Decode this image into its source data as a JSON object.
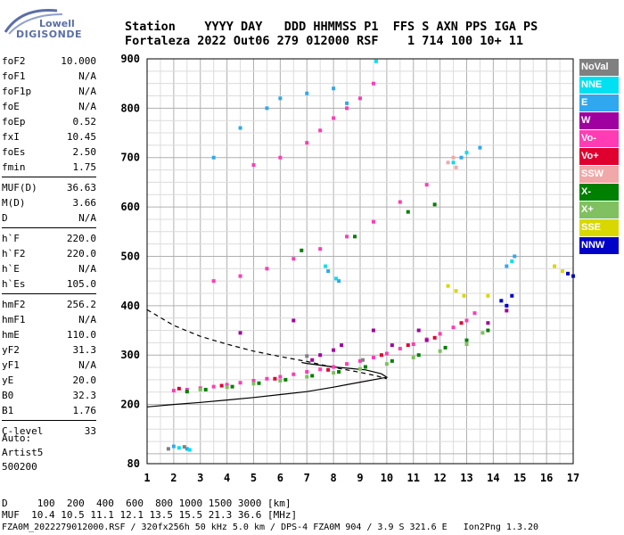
{
  "logo": {
    "line1": "Lowell",
    "line2": "DIGISONDE"
  },
  "header": {
    "row1": "Station    YYYY DAY   DDD HHMMSS P1  FFS S AXN PPS IGA PS",
    "row2": "Fortaleza 2022 Out06 279 012000 RSF    1 714 100 10+ 11"
  },
  "params": [
    {
      "label": "foF2",
      "value": "10.000"
    },
    {
      "label": "foF1",
      "value": "N/A"
    },
    {
      "label": "foF1p",
      "value": "N/A"
    },
    {
      "label": "foE",
      "value": "N/A"
    },
    {
      "label": "foEp",
      "value": "0.52"
    },
    {
      "label": "fxI",
      "value": "10.45"
    },
    {
      "label": "foEs",
      "value": "2.50"
    },
    {
      "label": "fmin",
      "value": "1.75"
    },
    {
      "label": "MUF(D)",
      "value": "36.63",
      "sep": true
    },
    {
      "label": "M(D)",
      "value": "3.66"
    },
    {
      "label": "D",
      "value": "N/A"
    },
    {
      "label": "h`F",
      "value": "220.0",
      "sep": true
    },
    {
      "label": "h`F2",
      "value": "220.0"
    },
    {
      "label": "h`E",
      "value": "N/A"
    },
    {
      "label": "h`Es",
      "value": "105.0"
    },
    {
      "label": "hmF2",
      "value": "256.2",
      "sep": true
    },
    {
      "label": "hmF1",
      "value": "N/A"
    },
    {
      "label": "hmE",
      "value": "110.0"
    },
    {
      "label": "yF2",
      "value": "31.3"
    },
    {
      "label": "yF1",
      "value": "N/A"
    },
    {
      "label": "yE",
      "value": "20.0"
    },
    {
      "label": "B0",
      "value": "32.3"
    },
    {
      "label": "B1",
      "value": "1.76"
    },
    {
      "label": "C-level",
      "value": "33",
      "sep": true
    }
  ],
  "auto": {
    "line1": "Auto:",
    "line2": "Artist5",
    "line3": "500200"
  },
  "footer": {
    "line1": "D     100  200  400  600  800 1000 1500 3000 [km]",
    "line2": "MUF  10.4 10.5 11.1 12.1 13.5 15.5 21.3 36.6 [MHz]",
    "line3": "FZA0M_2022279012000.RSF / 320fx256h 50 kHz 5.0 km / DPS-4 FZA0M 904 / 3.9 S 321.6 E   Ion2Png 1.3.20"
  },
  "legend": [
    {
      "label": "NoVal",
      "color": "#808080"
    },
    {
      "label": "NNE",
      "color": "#00e0f0"
    },
    {
      "label": "E",
      "color": "#30a8f0"
    },
    {
      "label": "W",
      "color": "#a000a0"
    },
    {
      "label": "Vo-",
      "color": "#ff3cb4"
    },
    {
      "label": "Vo+",
      "color": "#e00030"
    },
    {
      "label": "SSW",
      "color": "#f0a8a8"
    },
    {
      "label": "X-",
      "color": "#008000"
    },
    {
      "label": "X+",
      "color": "#80c060"
    },
    {
      "label": "SSE",
      "color": "#d8d800"
    },
    {
      "label": "NNW",
      "color": "#0000c8"
    }
  ],
  "chart_data": {
    "type": "scatter",
    "xlabel": "",
    "ylabel": "",
    "xlim": [
      1,
      17
    ],
    "ylim": [
      80,
      900
    ],
    "xticks": [
      1,
      2,
      3,
      4,
      5,
      6,
      7,
      8,
      9,
      10,
      11,
      12,
      13,
      14,
      15,
      16,
      17
    ],
    "yticks": [
      80,
      200,
      300,
      400,
      500,
      600,
      700,
      800,
      900
    ],
    "grid": true,
    "series": [
      {
        "name": "Vo-",
        "color": "#ff3cb4",
        "points": [
          [
            2,
            228
          ],
          [
            2.5,
            230
          ],
          [
            3,
            233
          ],
          [
            3.5,
            236
          ],
          [
            4,
            240
          ],
          [
            4.5,
            244
          ],
          [
            5,
            248
          ],
          [
            5.5,
            252
          ],
          [
            6,
            256
          ],
          [
            6.5,
            261
          ],
          [
            7,
            266
          ],
          [
            7.5,
            271
          ],
          [
            8,
            276
          ],
          [
            8.5,
            282
          ],
          [
            9,
            288
          ],
          [
            9.5,
            295
          ],
          [
            10,
            303
          ],
          [
            10.5,
            313
          ],
          [
            11,
            322
          ],
          [
            11.5,
            332
          ],
          [
            12,
            343
          ],
          [
            12.5,
            356
          ],
          [
            13,
            370
          ],
          [
            13.3,
            385
          ],
          [
            3.5,
            450
          ],
          [
            4.5,
            460
          ],
          [
            5.5,
            475
          ],
          [
            6.5,
            495
          ],
          [
            7.5,
            515
          ],
          [
            8.5,
            540
          ],
          [
            9.5,
            570
          ],
          [
            10.5,
            610
          ],
          [
            11.5,
            645
          ],
          [
            5,
            685
          ],
          [
            6,
            700
          ],
          [
            7,
            730
          ],
          [
            7.5,
            755
          ],
          [
            8,
            780
          ],
          [
            8.5,
            800
          ],
          [
            9,
            820
          ],
          [
            9.5,
            850
          ]
        ]
      },
      {
        "name": "X-",
        "color": "#008000",
        "points": [
          [
            2.5,
            226
          ],
          [
            3.2,
            230
          ],
          [
            4.2,
            236
          ],
          [
            5.2,
            243
          ],
          [
            6.2,
            250
          ],
          [
            7.2,
            258
          ],
          [
            8.2,
            266
          ],
          [
            9.2,
            276
          ],
          [
            10.2,
            288
          ],
          [
            11.2,
            300
          ],
          [
            12.2,
            315
          ],
          [
            13.0,
            330
          ],
          [
            13.8,
            350
          ],
          [
            6.8,
            512
          ],
          [
            8.8,
            540
          ],
          [
            10.8,
            590
          ],
          [
            11.8,
            605
          ]
        ]
      },
      {
        "name": "X+",
        "color": "#80c060",
        "points": [
          [
            3,
            230
          ],
          [
            4,
            235
          ],
          [
            5,
            242
          ],
          [
            6,
            248
          ],
          [
            7,
            256
          ],
          [
            8,
            264
          ],
          [
            9,
            272
          ],
          [
            10,
            282
          ],
          [
            11,
            295
          ],
          [
            12,
            308
          ],
          [
            13,
            322
          ],
          [
            13.6,
            345
          ]
        ]
      },
      {
        "name": "Vo+",
        "color": "#e00030",
        "points": [
          [
            2.2,
            232
          ],
          [
            3.8,
            238
          ],
          [
            5.8,
            252
          ],
          [
            7.8,
            270
          ],
          [
            9.8,
            300
          ],
          [
            10.8,
            320
          ],
          [
            11.8,
            335
          ],
          [
            12.8,
            365
          ]
        ]
      },
      {
        "name": "W",
        "color": "#a000a0",
        "points": [
          [
            4.5,
            345
          ],
          [
            6.5,
            370
          ],
          [
            7.2,
            290
          ],
          [
            7.5,
            300
          ],
          [
            8,
            310
          ],
          [
            8.3,
            320
          ],
          [
            9.5,
            350
          ],
          [
            10.2,
            320
          ],
          [
            11.2,
            350
          ],
          [
            11.5,
            330
          ],
          [
            13.8,
            365
          ],
          [
            14.5,
            390
          ]
        ]
      },
      {
        "name": "E",
        "color": "#30a8f0",
        "points": [
          [
            3.5,
            700
          ],
          [
            4.5,
            760
          ],
          [
            5.5,
            800
          ],
          [
            6,
            820
          ],
          [
            7,
            830
          ],
          [
            8,
            840
          ],
          [
            8.5,
            810
          ],
          [
            7.8,
            470
          ],
          [
            8.2,
            450
          ],
          [
            12.8,
            700
          ],
          [
            13.5,
            720
          ],
          [
            14.5,
            480
          ],
          [
            14.8,
            500
          ],
          [
            2,
            115
          ],
          [
            2.5,
            110
          ]
        ]
      },
      {
        "name": "NNE",
        "color": "#00e0f0",
        "points": [
          [
            7.7,
            480
          ],
          [
            8.1,
            455
          ],
          [
            9.6,
            895
          ],
          [
            12.5,
            690
          ],
          [
            13,
            710
          ],
          [
            14.7,
            490
          ],
          [
            2.2,
            112
          ],
          [
            2.6,
            108
          ]
        ]
      },
      {
        "name": "SSW",
        "color": "#f0a8a8",
        "points": [
          [
            12.3,
            690
          ],
          [
            12.5,
            700
          ],
          [
            12.6,
            680
          ]
        ]
      },
      {
        "name": "SSE",
        "color": "#d8d800",
        "points": [
          [
            12.3,
            440
          ],
          [
            12.6,
            430
          ],
          [
            12.9,
            420
          ],
          [
            13.8,
            420
          ],
          [
            16.3,
            480
          ],
          [
            16.6,
            470
          ]
        ]
      },
      {
        "name": "NNW",
        "color": "#0000c8",
        "points": [
          [
            14.3,
            410
          ],
          [
            14.5,
            400
          ],
          [
            14.7,
            420
          ],
          [
            16.8,
            465
          ],
          [
            17,
            460
          ]
        ]
      },
      {
        "name": "NoVal",
        "color": "#808080",
        "points": [
          [
            1.8,
            110
          ],
          [
            2.4,
            114
          ],
          [
            7,
            298
          ],
          [
            9.1,
            290
          ]
        ]
      }
    ],
    "curves": [
      {
        "style": "solid",
        "points": [
          [
            1,
            195
          ],
          [
            2,
            200
          ],
          [
            3,
            204
          ],
          [
            4,
            209
          ],
          [
            5,
            214
          ],
          [
            6,
            220
          ],
          [
            7,
            226
          ],
          [
            8,
            235
          ],
          [
            9,
            245
          ],
          [
            9.7,
            252
          ],
          [
            10,
            255
          ],
          [
            9.8,
            262
          ],
          [
            9.2,
            270
          ],
          [
            8,
            276
          ],
          [
            7,
            283
          ],
          [
            6.8,
            285
          ]
        ]
      },
      {
        "style": "dashed",
        "points": [
          [
            1,
            392
          ],
          [
            2,
            360
          ],
          [
            3,
            338
          ],
          [
            4,
            322
          ],
          [
            5,
            308
          ],
          [
            6,
            297
          ],
          [
            7,
            287
          ],
          [
            8,
            275
          ],
          [
            9,
            265
          ],
          [
            9.6,
            258
          ],
          [
            10,
            252
          ]
        ]
      }
    ]
  }
}
